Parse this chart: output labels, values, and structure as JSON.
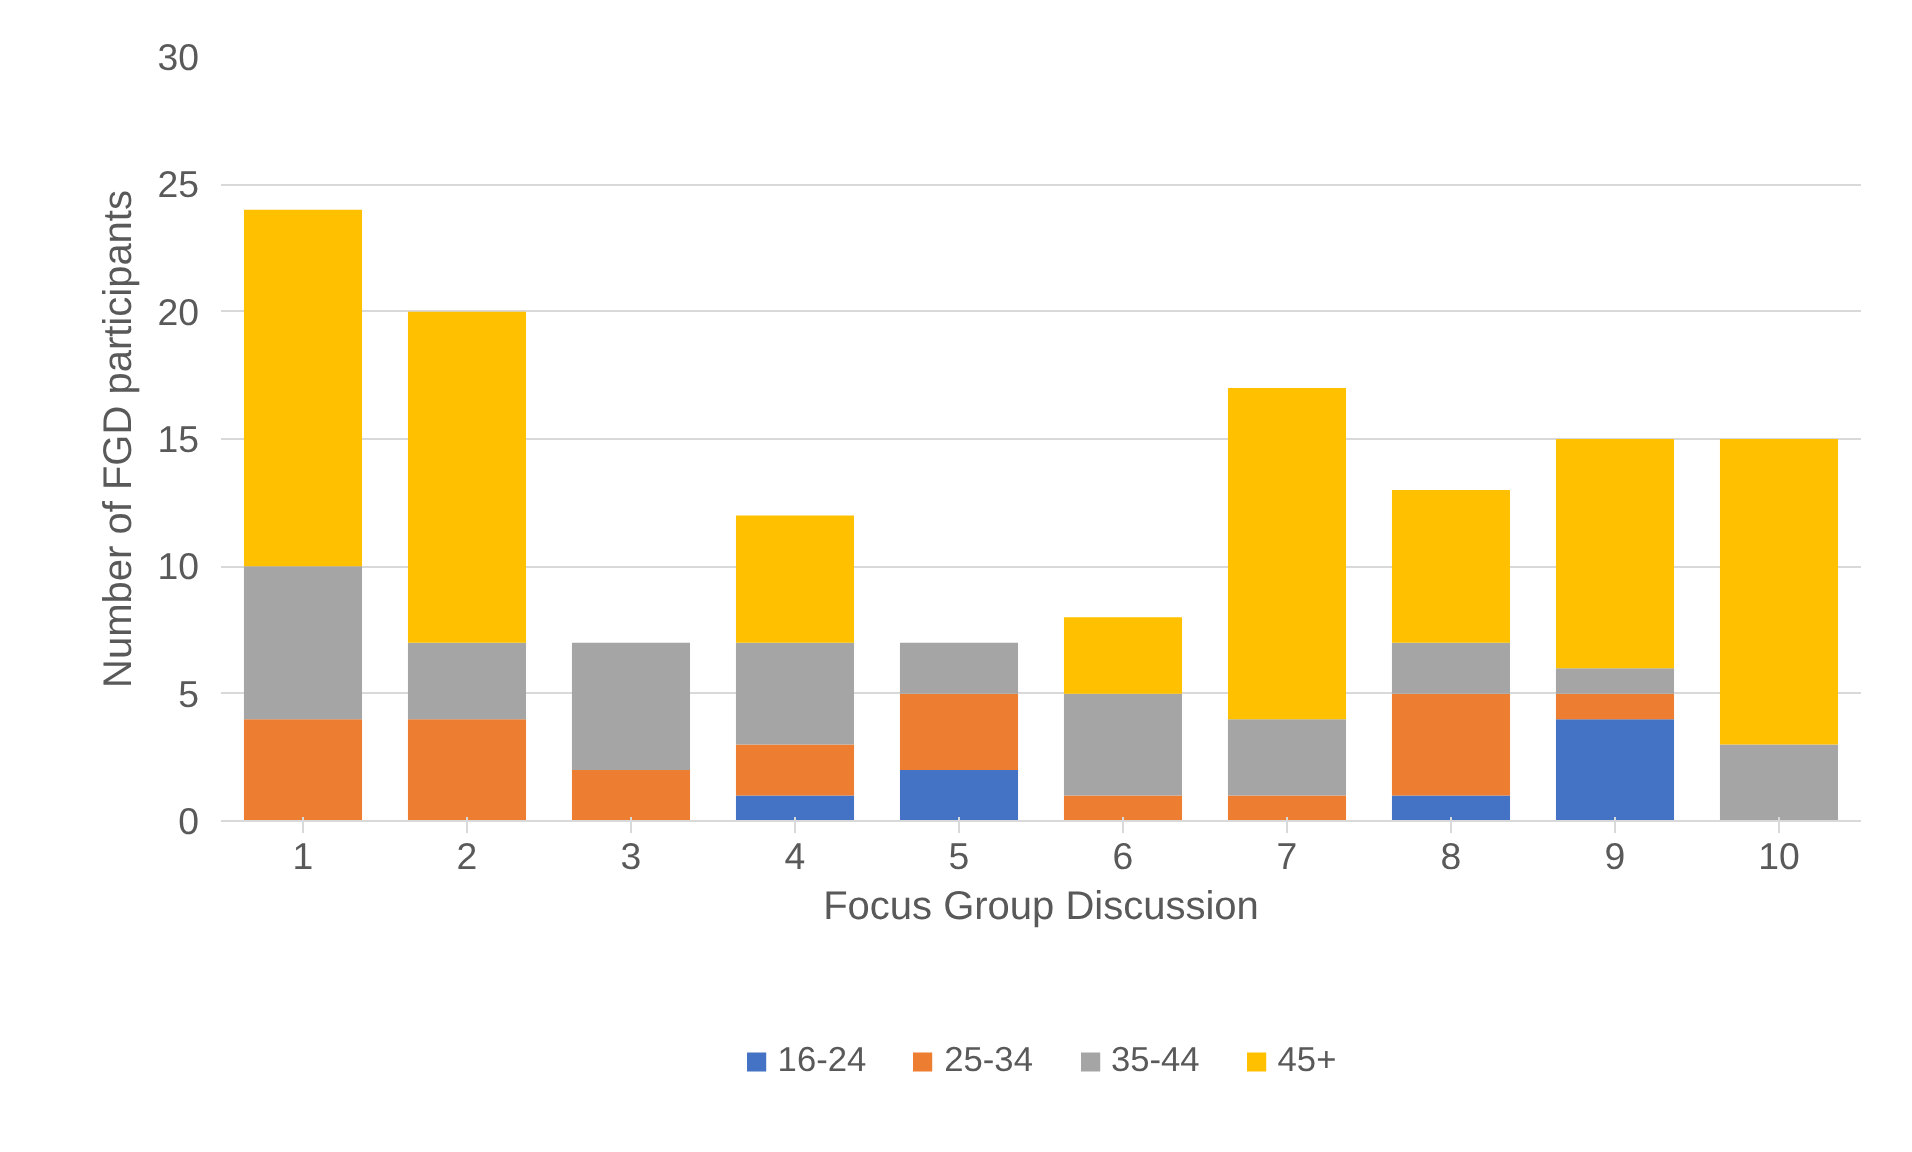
{
  "chart_data": {
    "type": "bar",
    "stacked": true,
    "xlabel": "Focus Group Discussion",
    "ylabel": "Number of FGD participants",
    "categories": [
      "1",
      "2",
      "3",
      "4",
      "5",
      "6",
      "7",
      "8",
      "9",
      "10"
    ],
    "series": [
      {
        "name": "16-24",
        "color": "#4472c4",
        "values": [
          0,
          0,
          0,
          1,
          2,
          0,
          0,
          1,
          4,
          0
        ]
      },
      {
        "name": "25-34",
        "color": "#ed7d31",
        "values": [
          4,
          4,
          2,
          2,
          3,
          1,
          1,
          4,
          1,
          0
        ]
      },
      {
        "name": "35-44",
        "color": "#a5a5a5",
        "values": [
          6,
          3,
          5,
          4,
          2,
          4,
          3,
          2,
          1,
          3
        ]
      },
      {
        "name": "45+",
        "color": "#ffc000",
        "values": [
          14,
          13,
          0,
          5,
          0,
          3,
          13,
          6,
          9,
          12
        ]
      }
    ],
    "ylim": [
      0,
      30
    ],
    "yticks": [
      0,
      5,
      10,
      15,
      20,
      25,
      30
    ],
    "grid": "y",
    "legend": "bottom"
  }
}
